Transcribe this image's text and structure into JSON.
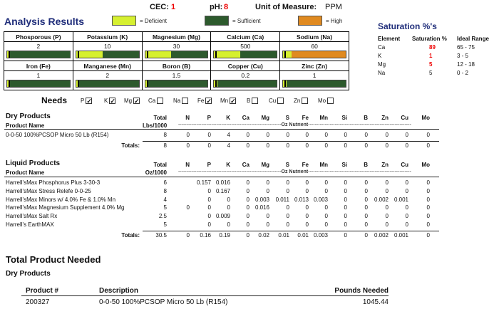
{
  "header": {
    "title": "Analysis Results",
    "cec_label": "CEC:",
    "cec_value": "1",
    "ph_label": "pH:",
    "ph_value": "8",
    "uom_label": "Unit of Measure:",
    "uom_value": "PPM"
  },
  "legend": {
    "deficient": "= Deficient",
    "sufficient": "= Sufficient",
    "high": "= High",
    "colors": {
      "deficient": "#d6f030",
      "sufficient": "#2d5a2d",
      "high": "#e08a20"
    }
  },
  "nutrients": [
    {
      "name": "Phosporous (P)",
      "value": "2",
      "status": "deficient",
      "fill": 0.05
    },
    {
      "name": "Potassium (K)",
      "value": "10",
      "status": "deficient",
      "fill": 0.42
    },
    {
      "name": "Magnesium (Mg)",
      "value": "30",
      "status": "deficient",
      "fill": 0.42
    },
    {
      "name": "Calcium (Ca)",
      "value": "500",
      "status": "deficient",
      "fill": 0.42
    },
    {
      "name": "Sodium (Na)",
      "value": "60",
      "status": "high",
      "fill": 1.0
    },
    {
      "name": "Iron (Fe)",
      "value": "1",
      "status": "deficient",
      "fill": 0.05
    },
    {
      "name": "Manganese (Mn)",
      "value": "2",
      "status": "deficient",
      "fill": 0.05
    },
    {
      "name": "Boron (B)",
      "value": "1.5",
      "status": "deficient",
      "fill": 0.05
    },
    {
      "name": "Copper (Cu)",
      "value": "0.2",
      "status": "deficient",
      "fill": 0.05
    },
    {
      "name": "Zinc (Zn)",
      "value": "1",
      "status": "deficient",
      "fill": 0.05
    }
  ],
  "needs": {
    "title": "Needs",
    "items": [
      {
        "label": "P",
        "checked": true
      },
      {
        "label": "K",
        "checked": true
      },
      {
        "label": "Mg",
        "checked": true
      },
      {
        "label": "Ca",
        "checked": false
      },
      {
        "label": "Na",
        "checked": false
      },
      {
        "label": "Fe",
        "checked": true
      },
      {
        "label": "Mn",
        "checked": true
      },
      {
        "label": "B",
        "checked": false
      },
      {
        "label": "Cu",
        "checked": false
      },
      {
        "label": "Zn",
        "checked": false
      },
      {
        "label": "Mo",
        "checked": false
      }
    ]
  },
  "saturation": {
    "title": "Saturation %'s",
    "headers": [
      "Element",
      "Saturation %",
      "Ideal Range"
    ],
    "rows": [
      {
        "element": "Ca",
        "value": "89",
        "range": "65 - 75",
        "flag": true
      },
      {
        "element": "K",
        "value": "1",
        "range": "3 - 5",
        "flag": true
      },
      {
        "element": "Mg",
        "value": "5",
        "range": "12 - 18",
        "flag": true
      },
      {
        "element": "Na",
        "value": "5",
        "range": "0 - 2",
        "flag": false
      }
    ]
  },
  "columns": [
    "N",
    "P",
    "K",
    "Ca",
    "Mg",
    "S",
    "Fe",
    "Mn",
    "Si",
    "B",
    "Zn",
    "Cu",
    "Mo"
  ],
  "dry": {
    "title": "Dry Products",
    "product_header": "Product Name",
    "total_header_1": "Total",
    "total_header_2": "Lbs/1000",
    "oz_label": "Oz Nutrient",
    "rows": [
      {
        "name": "0-0-50 100%PCSOP Micro 50 Lb  (R154)",
        "total": "8",
        "vals": [
          "0",
          "0",
          "4",
          "0",
          "0",
          "0",
          "0",
          "0",
          "0",
          "0",
          "0",
          "0",
          "0"
        ]
      }
    ],
    "totals_label": "Totals:",
    "totals": {
      "total": "8",
      "vals": [
        "0",
        "0",
        "4",
        "0",
        "0",
        "0",
        "0",
        "0",
        "0",
        "0",
        "0",
        "0",
        "0"
      ]
    }
  },
  "liquid": {
    "title": "Liquid Products",
    "product_header": "Product Name",
    "total_header_1": "Total",
    "total_header_2": "Oz/1000",
    "oz_label": "Oz Nutrient",
    "rows": [
      {
        "name": "Harrell'sMax Phosphorus Plus 3-30-3",
        "total": "6",
        "vals": [
          "",
          "0.157",
          "0.016",
          "0",
          "0",
          "0",
          "0",
          "0",
          "0",
          "0",
          "0",
          "0",
          "0"
        ]
      },
      {
        "name": "Harrell'sMax Stress Relefe 0-0-25",
        "total": "8",
        "vals": [
          "",
          "0",
          "0.167",
          "0",
          "0",
          "0",
          "0",
          "0",
          "0",
          "0",
          "0",
          "0",
          "0"
        ]
      },
      {
        "name": "Harrell'sMax Minors w/ 4.0% Fe & 1.0% Mn",
        "total": "4",
        "vals": [
          "",
          "0",
          "0",
          "0",
          "0.003",
          "0.011",
          "0.013",
          "0.003",
          "0",
          "0",
          "0.002",
          "0.001",
          "0"
        ]
      },
      {
        "name": "Harrell'sMax Magnesium Supplement 4.0% Mg",
        "total": "5",
        "vals": [
          "0",
          "0",
          "0",
          "0",
          "0.016",
          "0",
          "0",
          "0",
          "0",
          "0",
          "0",
          "0",
          "0"
        ]
      },
      {
        "name": "Harrell'sMax Salt Rx",
        "total": "2.5",
        "vals": [
          "",
          "0",
          "0.009",
          "0",
          "0",
          "0",
          "0",
          "0",
          "0",
          "0",
          "0",
          "0",
          "0"
        ]
      },
      {
        "name": "Harrell's EarthMAX",
        "total": "5",
        "vals": [
          "",
          "0",
          "0",
          "0",
          "0",
          "0",
          "0",
          "0",
          "0",
          "0",
          "0",
          "0",
          "0"
        ]
      }
    ],
    "totals_label": "Totals:",
    "totals": {
      "total": "30.5",
      "vals": [
        "0",
        "0.16",
        "0.19",
        "0",
        "0.02",
        "0.01",
        "0.01",
        "0.003",
        "0",
        "0",
        "0.002",
        "0.001",
        "0"
      ]
    }
  },
  "needed": {
    "title": "Total Product Needed",
    "subtitle": "Dry Products",
    "headers": {
      "product_num": "Product #",
      "description": "Description",
      "pounds": "Pounds Needed"
    },
    "rows": [
      {
        "product_num": "200327",
        "description": "0-0-50 100%PCSOP Micro 50 Lb  (R154)",
        "pounds": "1045.44"
      }
    ]
  }
}
